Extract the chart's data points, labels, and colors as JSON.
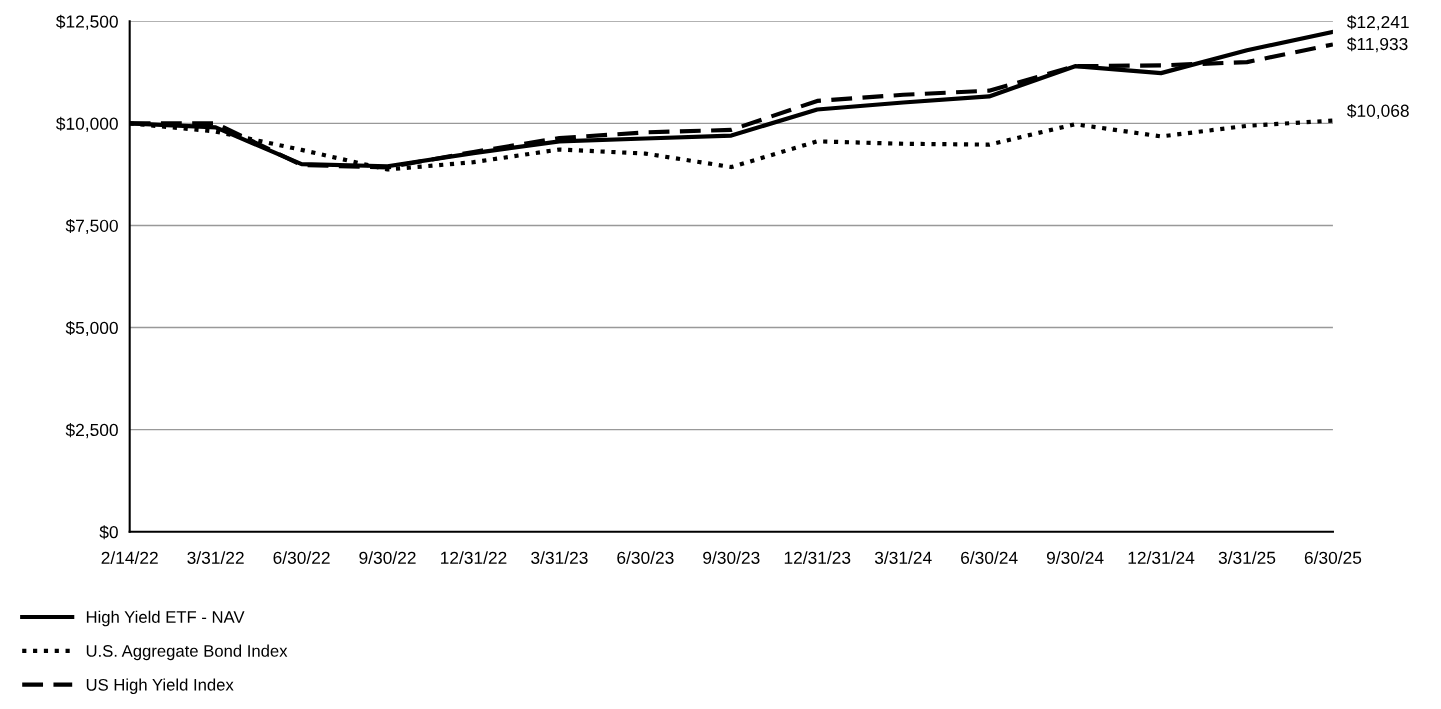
{
  "chart_data": {
    "type": "line",
    "categories": [
      "2/14/22",
      "3/31/22",
      "6/30/22",
      "9/30/22",
      "12/31/22",
      "3/31/23",
      "6/30/23",
      "9/30/23",
      "12/31/23",
      "3/31/24",
      "6/30/24",
      "9/30/24",
      "12/31/24",
      "3/31/25",
      "6/30/25"
    ],
    "series": [
      {
        "name": "High Yield ETF - NAV",
        "color": "#000000",
        "line_style": "solid",
        "values": [
          10000,
          9900,
          9000,
          8950,
          9270,
          9560,
          9630,
          9700,
          10340,
          10510,
          10660,
          11400,
          11230,
          11790,
          12241
        ]
      },
      {
        "name": "U.S. Aggregate Bond Index",
        "color": "#000000",
        "line_style": "dotted",
        "values": [
          10000,
          9800,
          9350,
          8870,
          9050,
          9360,
          9260,
          8930,
          9560,
          9500,
          9480,
          9980,
          9680,
          9940,
          10068
        ]
      },
      {
        "name": "US High Yield Index",
        "color": "#000000",
        "line_style": "dashed",
        "values": [
          10000,
          10000,
          8980,
          8920,
          9300,
          9640,
          9780,
          9840,
          10550,
          10700,
          10800,
          11400,
          11420,
          11500,
          11933
        ]
      }
    ],
    "ylim": [
      0,
      12500
    ],
    "yticks": [
      {
        "value": 0,
        "label": "$0"
      },
      {
        "value": 2500,
        "label": "$2,500"
      },
      {
        "value": 5000,
        "label": "$5,000"
      },
      {
        "value": 7500,
        "label": "$7,500"
      },
      {
        "value": 10000,
        "label": "$10,000"
      },
      {
        "value": 12500,
        "label": "$12,500"
      }
    ],
    "grid": "y",
    "legend": "bottom left",
    "marker": "none",
    "annotations": [
      {
        "text": "$12,241",
        "x": "6/30/25",
        "y": 12241
      },
      {
        "text": "$11,933",
        "x": "6/30/25",
        "y": 11933
      },
      {
        "text": "$10,068",
        "x": "6/30/25",
        "y": 10068
      }
    ]
  }
}
